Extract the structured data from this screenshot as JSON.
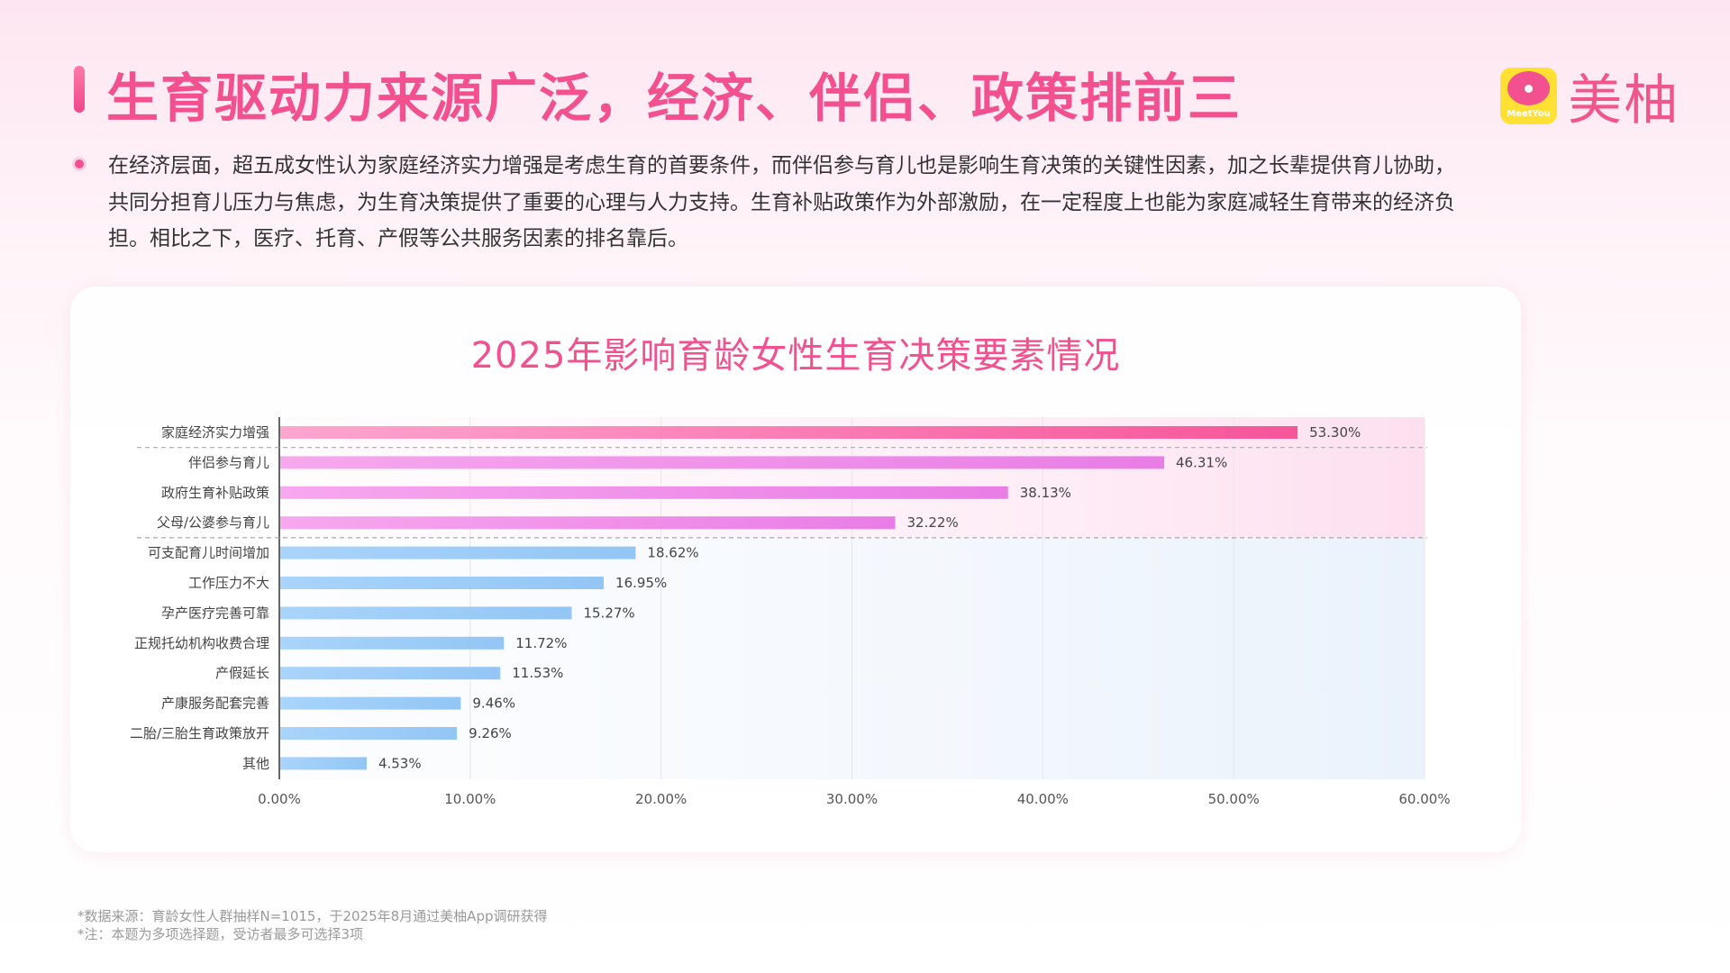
{
  "header": {
    "title": "生育驱动力来源广泛，经济、伴侣、政策排前三"
  },
  "logo": {
    "name": "美柚",
    "sub": "MeetYou",
    "color": "#f0568c"
  },
  "summary": "在经济层面，超五成女性认为家庭经济实力增强是考虑生育的首要条件，而伴侣参与育儿也是影响生育决策的关键性因素，加之长辈提供育儿协助，共同分担育儿压力与焦虑，为生育决策提供了重要的心理与人力支持。生育补贴政策作为外部激励，在一定程度上也能为家庭减轻生育带来的经济负担。相比之下，医疗、托育、产假等公共服务因素的排名靠后。",
  "chart_data": {
    "type": "bar",
    "orientation": "horizontal",
    "title": "2025年影响育龄女性生育决策要素情况",
    "categories": [
      "家庭经济实力增强",
      "伴侣参与育儿",
      "政府生育补贴政策",
      "父母/公婆参与育儿",
      "可支配育儿时间增加",
      "工作压力不大",
      "孕产医疗完善可靠",
      "正规托幼机构收费合理",
      "产假延长",
      "产康服务配套完善",
      "二胎/三胎生育政策放开",
      "其他"
    ],
    "values": [
      53.3,
      46.31,
      38.13,
      32.22,
      18.62,
      16.95,
      15.27,
      11.72,
      11.53,
      9.46,
      9.26,
      4.53
    ],
    "value_labels": [
      "53.30%",
      "46.31%",
      "38.13%",
      "32.22%",
      "18.62%",
      "16.95%",
      "15.27%",
      "11.72%",
      "11.53%",
      "9.46%",
      "9.26%",
      "4.53%"
    ],
    "xlim": [
      0,
      60
    ],
    "ticks": [
      "0.00%",
      "10.00%",
      "20.00%",
      "30.00%",
      "40.00%",
      "50.00%",
      "60.00%"
    ],
    "grid": true,
    "colors": {
      "top_group": "#f07ad8",
      "top1": "#f2508f",
      "rest": "#9ccbf7"
    }
  },
  "footnotes": [
    "*数据来源：育龄女性人群抽样N=1015，于2025年8月通过美柚App调研获得",
    "*注：本题为多项选择题，受访者最多可选择3项"
  ]
}
